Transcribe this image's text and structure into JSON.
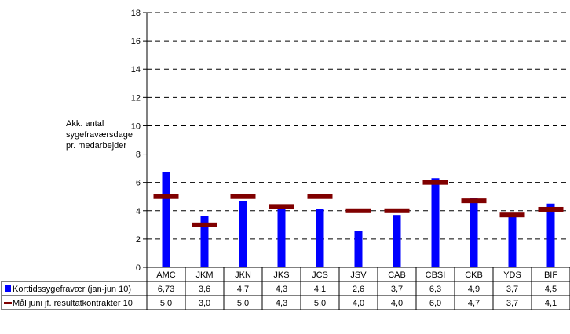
{
  "chart_data": {
    "type": "bar",
    "ylabel": "Akk. antal sygefraværsdage pr. medarbejder",
    "ylim": [
      0,
      18
    ],
    "yticks": [
      0,
      2,
      4,
      6,
      8,
      10,
      12,
      14,
      16,
      18
    ],
    "grid": true,
    "legend": "table-left",
    "categories": [
      "AMC",
      "JKM",
      "JKN",
      "JKS",
      "JCS",
      "JSV",
      "CAB",
      "CBSI",
      "CKB",
      "YDS",
      "BIF"
    ],
    "series": [
      {
        "name": "Korttidssygefravær (jan-jun 10)",
        "type": "bar",
        "color": "#0000ff",
        "values": [
          6.73,
          3.6,
          4.7,
          4.3,
          4.1,
          2.6,
          3.7,
          6.3,
          4.9,
          3.7,
          4.5
        ],
        "labels": [
          "6,73",
          "3,6",
          "4,7",
          "4,3",
          "4,1",
          "2,6",
          "3,7",
          "6,3",
          "4,9",
          "3,7",
          "4,5"
        ]
      },
      {
        "name": "Mål juni jf. resultatkontrakter 10",
        "type": "marker",
        "color": "#800000",
        "values": [
          5.0,
          3.0,
          5.0,
          4.3,
          5.0,
          4.0,
          4.0,
          6.0,
          4.7,
          3.7,
          4.1
        ],
        "labels": [
          "5,0",
          "3,0",
          "5,0",
          "4,3",
          "5,0",
          "4,0",
          "4,0",
          "6,0",
          "4,7",
          "3,7",
          "4,1"
        ]
      }
    ]
  }
}
